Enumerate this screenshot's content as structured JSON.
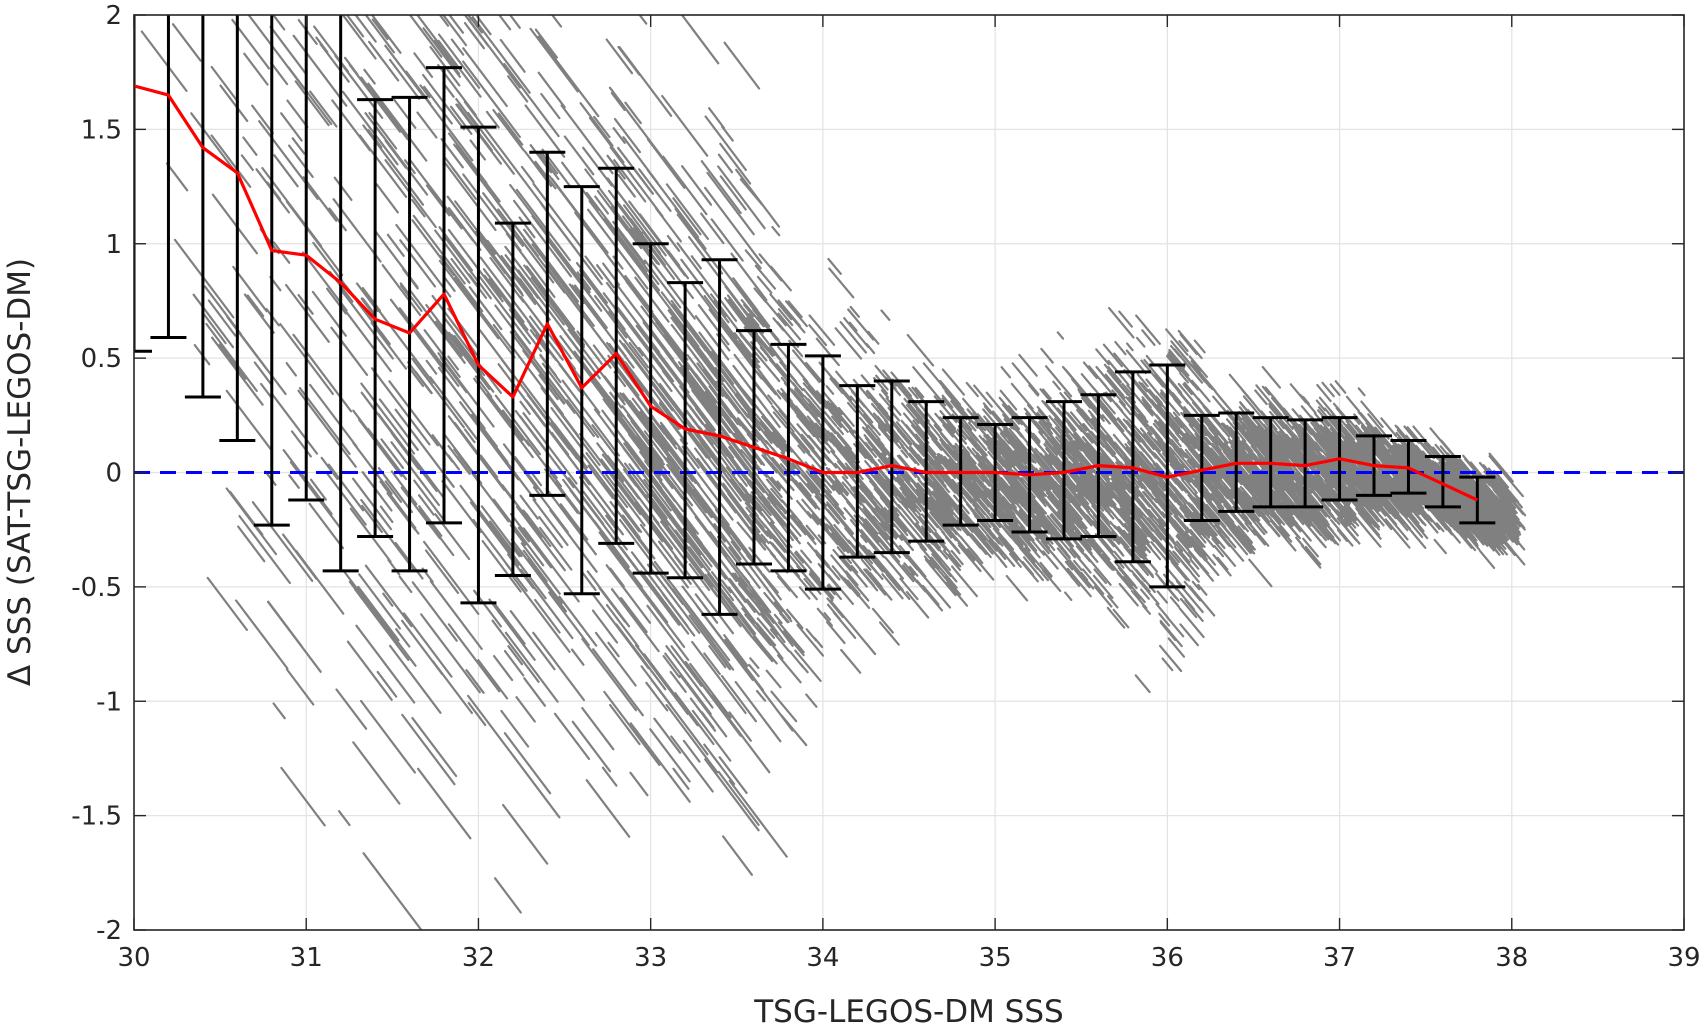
{
  "chart_data": {
    "type": "scatter",
    "xlabel": "TSG-LEGOS-DM SSS",
    "ylabel": "Δ SSS (SAT-TSG-LEGOS-DM)",
    "xlim": [
      30,
      39
    ],
    "ylim": [
      -2,
      2
    ],
    "xticks": [
      "30",
      "31",
      "32",
      "33",
      "34",
      "35",
      "36",
      "37",
      "38",
      "39"
    ],
    "yticks": [
      "-2",
      "-1.5",
      "-1",
      "-0.5",
      "0",
      "0.5",
      "1",
      "1.5",
      "2"
    ],
    "grid": true,
    "reference_line": {
      "y": 0,
      "style": "dashed",
      "color": "#0000ff"
    },
    "colors": {
      "scatter": "#808080",
      "mean_line": "#ff0000",
      "error_bars": "#000000",
      "reference": "#0000ff"
    },
    "binned_mean": {
      "x": [
        30.0,
        30.2,
        30.4,
        30.6,
        30.8,
        31.0,
        31.2,
        31.4,
        31.6,
        31.8,
        32.0,
        32.2,
        32.4,
        32.6,
        32.8,
        33.0,
        33.2,
        33.4,
        33.6,
        33.8,
        34.0,
        34.2,
        34.4,
        34.6,
        34.8,
        35.0,
        35.2,
        35.4,
        35.6,
        35.8,
        36.0,
        36.2,
        36.4,
        36.6,
        36.8,
        37.0,
        37.2,
        37.4,
        37.6,
        37.8
      ],
      "y": [
        1.69,
        1.65,
        1.42,
        1.31,
        0.97,
        0.95,
        0.83,
        0.67,
        0.61,
        0.78,
        0.47,
        0.33,
        0.65,
        0.37,
        0.52,
        0.29,
        0.19,
        0.16,
        0.11,
        0.06,
        0.0,
        0.0,
        0.03,
        0.0,
        0.0,
        0.0,
        -0.01,
        0.0,
        0.03,
        0.02,
        -0.02,
        0.01,
        0.04,
        0.04,
        0.03,
        0.06,
        0.03,
        0.02,
        -0.05,
        -0.12
      ],
      "lower": [
        0.53,
        0.59,
        0.33,
        0.14,
        -0.23,
        -0.12,
        -0.43,
        -0.28,
        -0.43,
        -0.22,
        -0.57,
        -0.45,
        -0.1,
        -0.53,
        -0.31,
        -0.44,
        -0.46,
        -0.62,
        -0.4,
        -0.43,
        -0.51,
        -0.37,
        -0.35,
        -0.3,
        -0.23,
        -0.21,
        -0.26,
        -0.29,
        -0.28,
        -0.39,
        -0.5,
        -0.21,
        -0.17,
        -0.15,
        -0.15,
        -0.12,
        -0.1,
        -0.09,
        -0.15,
        -0.22
      ],
      "upper": [
        2.0,
        2.0,
        2.0,
        2.0,
        2.0,
        2.0,
        2.0,
        1.63,
        1.64,
        1.77,
        1.51,
        1.09,
        1.4,
        1.25,
        1.33,
        1.0,
        0.83,
        0.93,
        0.62,
        0.56,
        0.51,
        0.38,
        0.4,
        0.31,
        0.24,
        0.21,
        0.24,
        0.31,
        0.34,
        0.44,
        0.47,
        0.25,
        0.26,
        0.24,
        0.23,
        0.24,
        0.16,
        0.14,
        0.07,
        -0.02
      ]
    }
  }
}
